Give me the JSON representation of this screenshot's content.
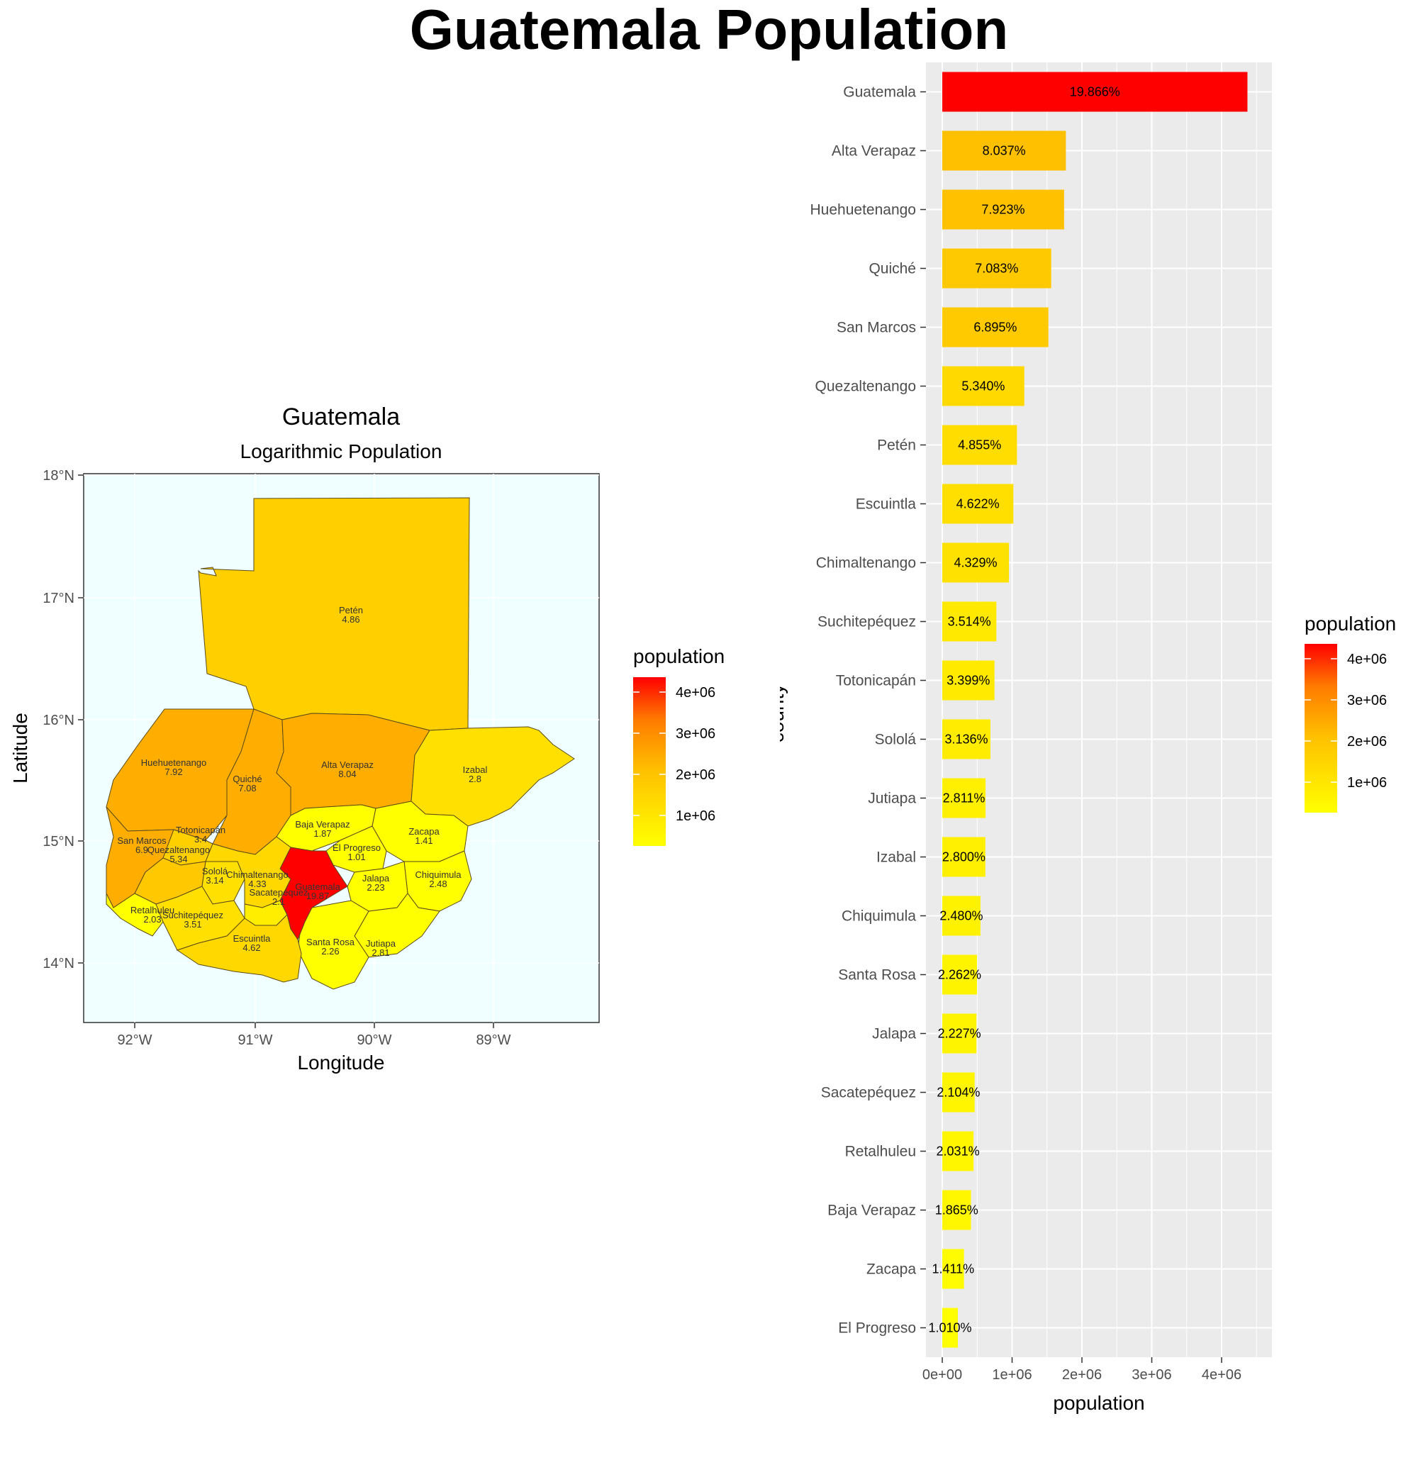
{
  "page_title": "Guatemala Population",
  "map": {
    "title": "Guatemala",
    "subtitle": "Logarithmic Population",
    "xlabel": "Longitude",
    "ylabel": "Latitude",
    "x_ticks": [
      "92°W",
      "91°W",
      "90°W",
      "89°W"
    ],
    "y_ticks": [
      "14°N",
      "15°N",
      "16°N",
      "17°N",
      "18°N"
    ],
    "background_color": "#f0ffff",
    "legend_title": "population",
    "legend_ticks": [
      "1e+06",
      "2e+06",
      "3e+06",
      "4e+06"
    ],
    "regions": [
      {
        "name": "Petén",
        "value": "4.86"
      },
      {
        "name": "Huehuetenango",
        "value": "7.92"
      },
      {
        "name": "Quiché",
        "value": "7.08"
      },
      {
        "name": "Alta Verapaz",
        "value": "8.04"
      },
      {
        "name": "Izabal",
        "value": "2.8"
      },
      {
        "name": "Baja Verapaz",
        "value": "1.87"
      },
      {
        "name": "El Progreso",
        "value": "1.01"
      },
      {
        "name": "Zacapa",
        "value": "1.41"
      },
      {
        "name": "Totonicapán",
        "value": "3.4"
      },
      {
        "name": "San Marcos",
        "value": "6.9"
      },
      {
        "name": "Quezaltenango",
        "value": "5.34"
      },
      {
        "name": "Sololá",
        "value": "3.14"
      },
      {
        "name": "Chimaltenango",
        "value": "4.33"
      },
      {
        "name": "Guatemala",
        "value": "19.87"
      },
      {
        "name": "Sacatepéquez",
        "value": "2.1"
      },
      {
        "name": "Jalapa",
        "value": "2.23"
      },
      {
        "name": "Chiquimula",
        "value": "2.48"
      },
      {
        "name": "Retalhuleu",
        "value": "2.03"
      },
      {
        "name": "Suchitepéquez",
        "value": "3.51"
      },
      {
        "name": "Escuintla",
        "value": "4.62"
      },
      {
        "name": "Santa Rosa",
        "value": "2.26"
      },
      {
        "name": "Jutiapa",
        "value": "2.81"
      }
    ]
  },
  "chart_data": {
    "type": "bar",
    "orientation": "horizontal",
    "xlabel": "population",
    "ylabel": "county",
    "xlim": [
      0,
      4600000
    ],
    "x_ticks": [
      {
        "value": 0,
        "label": "0e+00"
      },
      {
        "value": 1000000,
        "label": "1e+06"
      },
      {
        "value": 2000000,
        "label": "2e+06"
      },
      {
        "value": 3000000,
        "label": "3e+06"
      },
      {
        "value": 4000000,
        "label": "4e+06"
      }
    ],
    "legend_title": "population",
    "legend_ticks": [
      "1e+06",
      "2e+06",
      "3e+06",
      "4e+06"
    ],
    "color_scale": {
      "low": "#ffff00",
      "high": "#ff0000",
      "min": 220000,
      "max": 4370000
    },
    "grid": true,
    "categories": [
      "Guatemala",
      "Alta Verapaz",
      "Huehuetenango",
      "Quiché",
      "San Marcos",
      "Quezaltenango",
      "Petén",
      "Escuintla",
      "Chimaltenango",
      "Suchitepéquez",
      "Totonicapán",
      "Sololá",
      "Jutiapa",
      "Izabal",
      "Chiquimula",
      "Santa Rosa",
      "Jalapa",
      "Sacatepéquez",
      "Retalhuleu",
      "Baja Verapaz",
      "Zacapa",
      "El Progreso"
    ],
    "values": [
      4370000,
      1770000,
      1745000,
      1560000,
      1520000,
      1175000,
      1070000,
      1018000,
      955000,
      775000,
      748000,
      690000,
      620000,
      617000,
      547000,
      498000,
      490000,
      464000,
      448000,
      411000,
      311000,
      223000
    ],
    "labels": [
      "19.866%",
      "8.037%",
      "7.923%",
      "7.083%",
      "6.895%",
      "5.340%",
      "4.855%",
      "4.622%",
      "4.329%",
      "3.514%",
      "3.399%",
      "3.136%",
      "2.811%",
      "2.800%",
      "2.480%",
      "2.262%",
      "2.227%",
      "2.104%",
      "2.031%",
      "1.865%",
      "1.411%",
      "1.010%"
    ]
  }
}
